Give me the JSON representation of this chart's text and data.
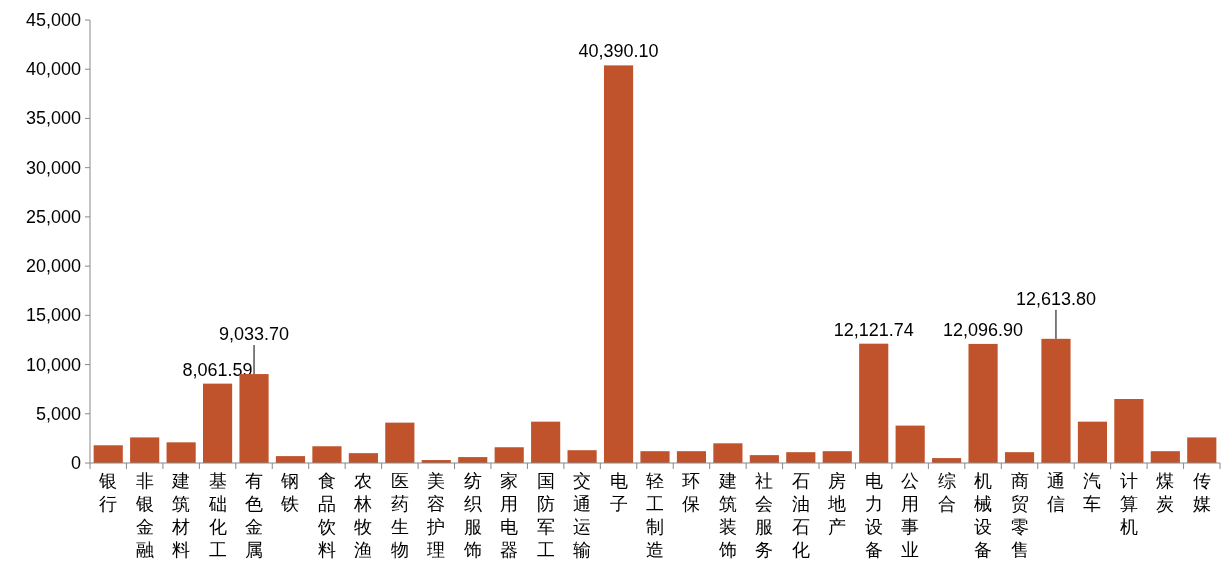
{
  "chart_data": {
    "type": "bar",
    "categories": [
      "银行",
      "非银金融",
      "建筑材料",
      "基础化工",
      "有色金属",
      "钢铁",
      "食品饮料",
      "农林牧渔",
      "医药生物",
      "美容护理",
      "纺织服饰",
      "家用电器",
      "国防军工",
      "交通运输",
      "电子",
      "轻工制造",
      "环保",
      "建筑装饰",
      "社会服务",
      "石油石化",
      "房地产",
      "电力设备",
      "公用事业",
      "综合",
      "机械设备",
      "商贸零售",
      "通信",
      "汽车",
      "计算机",
      "煤炭",
      "传媒"
    ],
    "values": [
      1800,
      2600,
      2100,
      8061.59,
      9033.7,
      700,
      1700,
      1000,
      4100,
      300,
      600,
      1600,
      4200,
      1300,
      40390.1,
      1200,
      1200,
      2000,
      800,
      1100,
      1200,
      12121.74,
      3800,
      500,
      12096.9,
      1100,
      12613.8,
      4200,
      6500,
      1200,
      2600
    ],
    "value_labels": [
      null,
      null,
      null,
      "8,061.59",
      "9,033.70",
      null,
      null,
      null,
      null,
      null,
      null,
      null,
      null,
      null,
      "40,390.10",
      null,
      null,
      null,
      null,
      null,
      null,
      "12,121.74",
      null,
      null,
      "12,096.90",
      null,
      "12,613.80",
      null,
      null,
      null,
      null
    ],
    "color": "#c0532b",
    "ylim": [
      0,
      45000
    ],
    "yticks": [
      {
        "value": 0,
        "label": "0"
      },
      {
        "value": 5000,
        "label": "5,000"
      },
      {
        "value": 10000,
        "label": "10,000"
      },
      {
        "value": 15000,
        "label": "15,000"
      },
      {
        "value": 20000,
        "label": "20,000"
      },
      {
        "value": 25000,
        "label": "25,000"
      },
      {
        "value": 30000,
        "label": "30,000"
      },
      {
        "value": 35000,
        "label": "35,000"
      },
      {
        "value": 40000,
        "label": "40,000"
      },
      {
        "value": 45000,
        "label": "45,000"
      }
    ],
    "grid": false
  }
}
